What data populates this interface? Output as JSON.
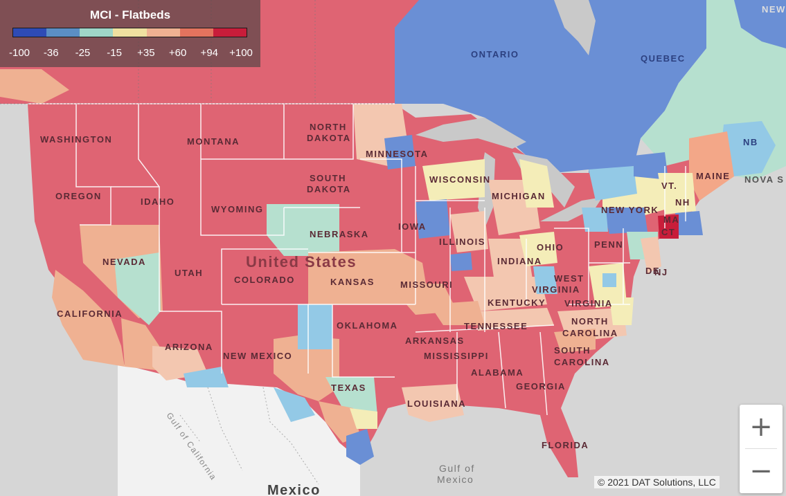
{
  "legend": {
    "title": "MCI - Flatbeds",
    "colors": [
      "#2e4bb5",
      "#5b8ec4",
      "#9fd6c8",
      "#efe0a0",
      "#efb192",
      "#e3735e",
      "#c81d3a"
    ],
    "ticks": [
      "-100",
      "-36",
      "-25",
      "-15",
      "+35",
      "+60",
      "+94",
      "+100"
    ]
  },
  "map_labels": {
    "ontario": "ONTARIO",
    "quebec": "QUEBEC",
    "nb": "NB",
    "nova": "NOVA S",
    "new": "NEW",
    "washington": "WASHINGTON",
    "montana": "MONTANA",
    "north": "NORTH",
    "dakota": "DAKOTA",
    "minnesota": "MINNESOTA",
    "south": "SOUTH",
    "dakota2": "DAKOTA",
    "oregon": "OREGON",
    "idaho": "IDAHO",
    "wyoming": "WYOMING",
    "wisconsin": "WISCONSIN",
    "michigan": "MICHIGAN",
    "maine": "MAINE",
    "vt": "VT.",
    "nh": "NH",
    "newyork": "NEW YORK",
    "ma": "MA",
    "ct": "CT",
    "iowa": "IOWA",
    "nebraska": "NEBRASKA",
    "penn": "PENN",
    "ohio": "OHIO",
    "illinois": "ILLINOIS",
    "indiana": "INDIANA",
    "nevada": "NEVADA",
    "unitedstates": "United States",
    "utah": "UTAH",
    "colorado": "COLORADO",
    "kansas": "KANSAS",
    "missouri": "MISSOURI",
    "west": "WEST",
    "virginia": "VIRGINIA",
    "wvirginia": "VIRGINIA",
    "de": "DE",
    "nj": "NJ",
    "kentucky": "KENTUCKY",
    "california": "CALIFORNIA",
    "oklahoma": "OKLAHOMA",
    "tennessee": "TENNESSEE",
    "northc": "NORTH",
    "carolina": "CAROLINA",
    "arizona": "ARIZONA",
    "newmexico": "NEW MEXICO",
    "arkansas": "ARKANSAS",
    "mississippi": "MISSISSIPPI",
    "southc": "SOUTH",
    "carolinas": "CAROLINA",
    "alabama": "ALABAMA",
    "georgia": "GEORGIA",
    "texas": "TEXAS",
    "louisiana": "LOUISIANA",
    "florida": "FLORIDA",
    "gulfcal": "Gulf of California",
    "gulfmex1": "Gulf of",
    "gulfmex2": "Mexico",
    "mexico": "Mexico"
  },
  "zoom": {
    "in": "+",
    "out": "−"
  },
  "copyright": "© 2021 DAT Solutions, LLC"
}
